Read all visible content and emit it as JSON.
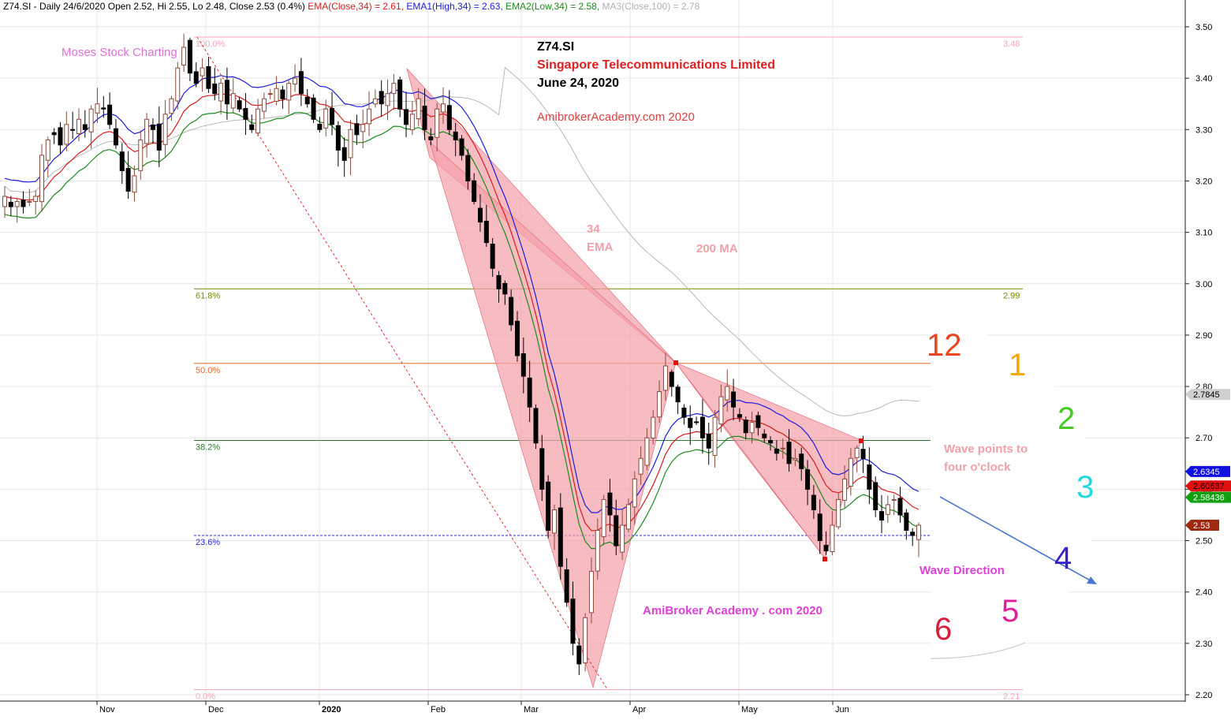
{
  "header": {
    "symbol_line": "Z74.SI - Daily 24/6/2020 Open 2.52, Hi 2.55, Lo 2.48, Close 2.53 (0.4%)",
    "ema_close": "EMA(Close,34) = 2.61,",
    "ema_high": "EMA1(High,34) = 2.63,",
    "ema_low": "EMA2(Low,34) = 2.58,",
    "ma_close": "MA3(Close,100) = 2.78"
  },
  "annotations": {
    "watermark_top": "Moses Stock Charting",
    "title_symbol": "Z74.SI",
    "title_company": "Singapore Telecommunications Limited",
    "title_date": "June 24, 2020",
    "site_top": "AmibrokerAcademy.com 2020",
    "label_34": "34",
    "label_ema": "EMA",
    "label_200ma": "200 MA",
    "wave_points_1": "Wave points to",
    "wave_points_2": "four o'clock",
    "wave_direction": "Wave Direction",
    "site_bottom": "AmiBroker Academy . com  2020"
  },
  "clock": {
    "numbers": [
      {
        "label": "12",
        "color": "#e8461c"
      },
      {
        "label": "1",
        "color": "#f5a700"
      },
      {
        "label": "2",
        "color": "#44cc22"
      },
      {
        "label": "3",
        "color": "#22d8e0"
      },
      {
        "label": "4",
        "color": "#3a20c8"
      },
      {
        "label": "5",
        "color": "#e0209a"
      },
      {
        "label": "6",
        "color": "#d81c3a"
      }
    ]
  },
  "chart_data": {
    "type": "candlestick",
    "y_axis": {
      "min": 2.2,
      "max": 3.5,
      "ticks": [
        "3.50",
        "3.40",
        "3.30",
        "3.20",
        "3.10",
        "3.00",
        "2.90",
        "2.80",
        "2.70",
        "2.60",
        "2.50",
        "2.40",
        "2.30",
        "2.20"
      ]
    },
    "x_axis": {
      "labels": [
        "Nov",
        "Dec",
        "2020",
        "Feb",
        "Mar",
        "Apr",
        "May",
        "Jun"
      ]
    },
    "fibonacci": [
      {
        "label": "100.0%",
        "price": 3.48,
        "right_label": "3.48",
        "color": "#f4a8b4"
      },
      {
        "label": "61.8%",
        "price": 2.99,
        "right_label": "2.99",
        "color": "#7a8a00"
      },
      {
        "label": "50.0%",
        "price": 2.845,
        "right_label": "",
        "color": "#e86a28"
      },
      {
        "label": "38.2%",
        "price": 2.695,
        "right_label": "",
        "color": "#2a7a2a"
      },
      {
        "label": "23.6%",
        "price": 2.51,
        "right_label": "",
        "color": "#2a2ad8"
      },
      {
        "label": "0.0%",
        "price": 2.21,
        "right_label": "2.21",
        "color": "#f4a8b4"
      }
    ],
    "value_tags": [
      {
        "label": "2.7845",
        "price": 2.7845,
        "bg": "#d0d0d0",
        "fg": "#000000"
      },
      {
        "label": "2.6345",
        "price": 2.6345,
        "bg": "#1010e0",
        "fg": "#ffffff"
      },
      {
        "label": "2.60637",
        "price": 2.60637,
        "bg": "#e01010",
        "fg": "#000000"
      },
      {
        "label": "2.58436",
        "price": 2.58436,
        "bg": "#10a010",
        "fg": "#ffffff"
      },
      {
        "label": "2.53",
        "price": 2.53,
        "bg": "#a02a10",
        "fg": "#ffffff"
      }
    ],
    "series": {
      "ema_close_34": "#d81c1c",
      "ema_high_34": "#1c1cd8",
      "ema_low_34": "#1c8a1c",
      "ma_close_100": "#b8b8b8"
    },
    "candle_close_path": [
      3.17,
      3.15,
      3.16,
      3.15,
      3.16,
      3.17,
      3.25,
      3.28,
      3.29,
      3.27,
      3.31,
      3.3,
      3.32,
      3.3,
      3.34,
      3.35,
      3.34,
      3.31,
      3.27,
      3.22,
      3.18,
      3.21,
      3.28,
      3.32,
      3.3,
      3.26,
      3.33,
      3.36,
      3.42,
      3.46,
      3.41,
      3.39,
      3.42,
      3.38,
      3.37,
      3.39,
      3.35,
      3.37,
      3.34,
      3.32,
      3.3,
      3.34,
      3.36,
      3.37,
      3.38,
      3.36,
      3.39,
      3.4,
      3.37,
      3.35,
      3.32,
      3.3,
      3.34,
      3.31,
      3.26,
      3.24,
      3.3,
      3.29,
      3.31,
      3.34,
      3.36,
      3.35,
      3.37,
      3.39,
      3.34,
      3.31,
      3.33,
      3.36,
      3.3,
      3.28,
      3.34,
      3.35,
      3.3,
      3.28,
      3.25,
      3.2,
      3.16,
      3.12,
      3.08,
      3.03,
      2.99,
      2.98,
      2.92,
      2.86,
      2.82,
      2.76,
      2.69,
      2.6,
      2.52,
      2.56,
      2.45,
      2.38,
      2.3,
      2.26,
      2.35,
      2.44,
      2.52,
      2.58,
      2.55,
      2.49,
      2.53,
      2.57,
      2.62,
      2.66,
      2.7,
      2.74,
      2.79,
      2.84,
      2.8,
      2.77,
      2.74,
      2.72,
      2.73,
      2.7,
      2.68,
      2.74,
      2.78,
      2.8,
      2.76,
      2.74,
      2.71,
      2.73,
      2.72,
      2.7,
      2.69,
      2.67,
      2.68,
      2.65,
      2.66,
      2.64,
      2.6,
      2.56,
      2.5,
      2.48,
      2.53,
      2.58,
      2.62,
      2.66,
      2.68,
      2.66,
      2.6,
      2.56,
      2.54,
      2.57,
      2.58,
      2.55,
      2.52,
      2.51,
      2.53
    ]
  }
}
